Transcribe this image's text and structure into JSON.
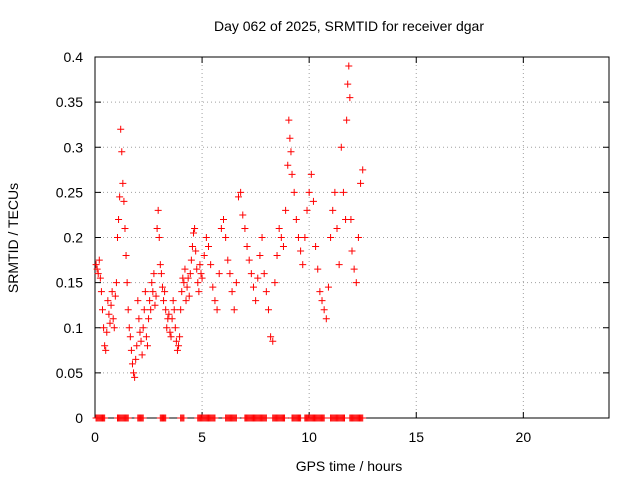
{
  "chart_data": {
    "type": "scatter",
    "title": "Day 062 of 2025, SRMTID for receiver dgar",
    "xlabel": "GPS time / hours",
    "ylabel": "SRMTID / TECUs",
    "xlim": [
      0,
      24
    ],
    "ylim": [
      0,
      0.4
    ],
    "xticks": [
      0,
      5,
      10,
      15,
      20
    ],
    "xtick_labels": [
      "0",
      "5",
      "10",
      "15",
      "20"
    ],
    "yticks": [
      0,
      0.05,
      0.1,
      0.15,
      0.2,
      0.25,
      0.3,
      0.35,
      0.4
    ],
    "ytick_labels": [
      "0",
      "0.05",
      "0.1",
      "0.15",
      "0.2",
      "0.25",
      "0.3",
      "0.35",
      "0.4"
    ],
    "grid": true,
    "marker": "+",
    "color": "#ff0000",
    "series": [
      {
        "name": "SRMTID",
        "points": [
          [
            0.05,
            0.17
          ],
          [
            0.1,
            0.165
          ],
          [
            0.15,
            0.16
          ],
          [
            0.2,
            0.175
          ],
          [
            0.25,
            0.155
          ],
          [
            0.3,
            0.14
          ],
          [
            0.35,
            0.12
          ],
          [
            0.4,
            0.1
          ],
          [
            0.45,
            0.08
          ],
          [
            0.5,
            0.075
          ],
          [
            0.55,
            0.095
          ],
          [
            0.6,
            0.13
          ],
          [
            0.65,
            0.115
          ],
          [
            0.7,
            0.105
          ],
          [
            0.75,
            0.125
          ],
          [
            0.8,
            0.14
          ],
          [
            0.85,
            0.11
          ],
          [
            0.9,
            0.1
          ],
          [
            0.95,
            0.135
          ],
          [
            1.0,
            0.15
          ],
          [
            1.05,
            0.2
          ],
          [
            1.1,
            0.22
          ],
          [
            1.15,
            0.245
          ],
          [
            1.2,
            0.32
          ],
          [
            1.25,
            0.295
          ],
          [
            1.3,
            0.26
          ],
          [
            1.35,
            0.24
          ],
          [
            1.4,
            0.21
          ],
          [
            1.45,
            0.18
          ],
          [
            1.5,
            0.15
          ],
          [
            1.55,
            0.12
          ],
          [
            1.6,
            0.1
          ],
          [
            1.65,
            0.09
          ],
          [
            1.7,
            0.075
          ],
          [
            1.75,
            0.06
          ],
          [
            1.8,
            0.05
          ],
          [
            1.85,
            0.045
          ],
          [
            1.9,
            0.065
          ],
          [
            1.95,
            0.08
          ],
          [
            2.0,
            0.13
          ],
          [
            2.05,
            0.11
          ],
          [
            2.1,
            0.095
          ],
          [
            2.15,
            0.085
          ],
          [
            2.2,
            0.07
          ],
          [
            2.25,
            0.1
          ],
          [
            2.3,
            0.12
          ],
          [
            2.35,
            0.14
          ],
          [
            2.4,
            0.09
          ],
          [
            2.45,
            0.08
          ],
          [
            2.5,
            0.11
          ],
          [
            2.55,
            0.13
          ],
          [
            2.6,
            0.12
          ],
          [
            2.65,
            0.15
          ],
          [
            2.7,
            0.14
          ],
          [
            2.75,
            0.16
          ],
          [
            2.8,
            0.125
          ],
          [
            2.85,
            0.135
          ],
          [
            2.9,
            0.21
          ],
          [
            2.95,
            0.23
          ],
          [
            3.0,
            0.2
          ],
          [
            3.05,
            0.17
          ],
          [
            3.1,
            0.16
          ],
          [
            3.15,
            0.145
          ],
          [
            3.2,
            0.13
          ],
          [
            3.25,
            0.14
          ],
          [
            3.3,
            0.12
          ],
          [
            3.35,
            0.1
          ],
          [
            3.4,
            0.11
          ],
          [
            3.45,
            0.115
          ],
          [
            3.5,
            0.095
          ],
          [
            3.55,
            0.09
          ],
          [
            3.6,
            0.11
          ],
          [
            3.65,
            0.13
          ],
          [
            3.7,
            0.12
          ],
          [
            3.75,
            0.1
          ],
          [
            3.8,
            0.085
          ],
          [
            3.85,
            0.075
          ],
          [
            3.9,
            0.08
          ],
          [
            3.95,
            0.09
          ],
          [
            4.0,
            0.12
          ],
          [
            4.05,
            0.14
          ],
          [
            4.1,
            0.155
          ],
          [
            4.15,
            0.15
          ],
          [
            4.2,
            0.165
          ],
          [
            4.25,
            0.13
          ],
          [
            4.3,
            0.145
          ],
          [
            4.35,
            0.155
          ],
          [
            4.4,
            0.135
          ],
          [
            4.45,
            0.16
          ],
          [
            4.5,
            0.175
          ],
          [
            4.55,
            0.19
          ],
          [
            4.6,
            0.205
          ],
          [
            4.65,
            0.21
          ],
          [
            4.7,
            0.185
          ],
          [
            4.75,
            0.165
          ],
          [
            4.8,
            0.15
          ],
          [
            4.85,
            0.14
          ],
          [
            4.9,
            0.17
          ],
          [
            4.95,
            0.16
          ],
          [
            5.0,
            0.155
          ],
          [
            5.1,
            0.18
          ],
          [
            5.2,
            0.2
          ],
          [
            5.3,
            0.19
          ],
          [
            5.4,
            0.17
          ],
          [
            5.5,
            0.145
          ],
          [
            5.6,
            0.13
          ],
          [
            5.7,
            0.12
          ],
          [
            5.8,
            0.16
          ],
          [
            5.9,
            0.21
          ],
          [
            6.0,
            0.22
          ],
          [
            6.1,
            0.2
          ],
          [
            6.2,
            0.175
          ],
          [
            6.3,
            0.16
          ],
          [
            6.4,
            0.14
          ],
          [
            6.5,
            0.12
          ],
          [
            6.6,
            0.15
          ],
          [
            6.7,
            0.245
          ],
          [
            6.8,
            0.25
          ],
          [
            6.9,
            0.225
          ],
          [
            7.0,
            0.21
          ],
          [
            7.1,
            0.19
          ],
          [
            7.2,
            0.175
          ],
          [
            7.3,
            0.16
          ],
          [
            7.4,
            0.145
          ],
          [
            7.5,
            0.13
          ],
          [
            7.6,
            0.155
          ],
          [
            7.7,
            0.18
          ],
          [
            7.8,
            0.2
          ],
          [
            7.9,
            0.16
          ],
          [
            8.0,
            0.14
          ],
          [
            8.1,
            0.12
          ],
          [
            8.2,
            0.09
          ],
          [
            8.3,
            0.085
          ],
          [
            8.4,
            0.15
          ],
          [
            8.5,
            0.18
          ],
          [
            8.6,
            0.21
          ],
          [
            8.7,
            0.2
          ],
          [
            8.8,
            0.19
          ],
          [
            8.9,
            0.23
          ],
          [
            9.0,
            0.28
          ],
          [
            9.05,
            0.33
          ],
          [
            9.1,
            0.31
          ],
          [
            9.15,
            0.295
          ],
          [
            9.2,
            0.27
          ],
          [
            9.3,
            0.25
          ],
          [
            9.4,
            0.22
          ],
          [
            9.5,
            0.2
          ],
          [
            9.6,
            0.185
          ],
          [
            9.7,
            0.17
          ],
          [
            9.8,
            0.2
          ],
          [
            9.9,
            0.23
          ],
          [
            10.0,
            0.25
          ],
          [
            10.1,
            0.27
          ],
          [
            10.2,
            0.24
          ],
          [
            10.3,
            0.19
          ],
          [
            10.4,
            0.165
          ],
          [
            10.5,
            0.14
          ],
          [
            10.6,
            0.13
          ],
          [
            10.7,
            0.12
          ],
          [
            10.8,
            0.11
          ],
          [
            10.9,
            0.145
          ],
          [
            11.0,
            0.2
          ],
          [
            11.1,
            0.23
          ],
          [
            11.2,
            0.25
          ],
          [
            11.3,
            0.21
          ],
          [
            11.4,
            0.17
          ],
          [
            11.5,
            0.3
          ],
          [
            11.6,
            0.25
          ],
          [
            11.7,
            0.22
          ],
          [
            11.75,
            0.33
          ],
          [
            11.8,
            0.37
          ],
          [
            11.85,
            0.39
          ],
          [
            11.9,
            0.355
          ],
          [
            11.95,
            0.22
          ],
          [
            12.0,
            0.185
          ],
          [
            12.1,
            0.165
          ],
          [
            12.2,
            0.15
          ],
          [
            12.3,
            0.2
          ],
          [
            12.4,
            0.26
          ],
          [
            12.5,
            0.275
          ]
        ]
      }
    ],
    "zero_band": {
      "y": 0,
      "segments": [
        [
          0.05,
          0.45
        ],
        [
          1.05,
          1.55
        ],
        [
          2.0,
          2.25
        ],
        [
          3.05,
          3.3
        ],
        [
          4.0,
          4.15
        ],
        [
          4.8,
          5.6
        ],
        [
          6.1,
          6.6
        ],
        [
          7.0,
          8.0
        ],
        [
          8.3,
          8.85
        ],
        [
          9.2,
          9.6
        ],
        [
          9.8,
          10.7
        ],
        [
          11.0,
          11.65
        ],
        [
          11.9,
          12.5
        ]
      ]
    }
  }
}
